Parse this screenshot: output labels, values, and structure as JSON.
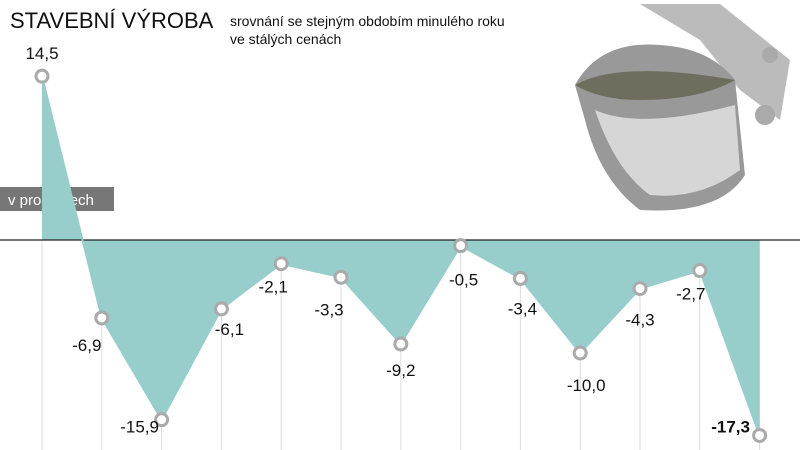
{
  "chart_data": {
    "type": "area",
    "title": "STAVEBNÍ VÝROBA",
    "subtitle": [
      "srovnání se stejným obdobím minulého roku",
      "ve stálých cenách"
    ],
    "unit_label": "v procentech",
    "categories": [
      null,
      null,
      null,
      null,
      null,
      null,
      null,
      null,
      null,
      null,
      null,
      null,
      null
    ],
    "values": [
      14.5,
      -6.9,
      -15.9,
      -6.1,
      -2.1,
      -3.3,
      -9.2,
      -0.5,
      -3.4,
      -10.0,
      -4.3,
      -2.7,
      -17.3
    ],
    "value_labels": [
      "14,5",
      "-6,9",
      "-15,9",
      "-6,1",
      "-2,1",
      "-3,3",
      "-9,2",
      "-0,5",
      "-3,4",
      "-10,0",
      "-4,3",
      "-2,7",
      "-17,3"
    ],
    "color": "#97cdcb",
    "ylim": [
      -18,
      15
    ]
  }
}
